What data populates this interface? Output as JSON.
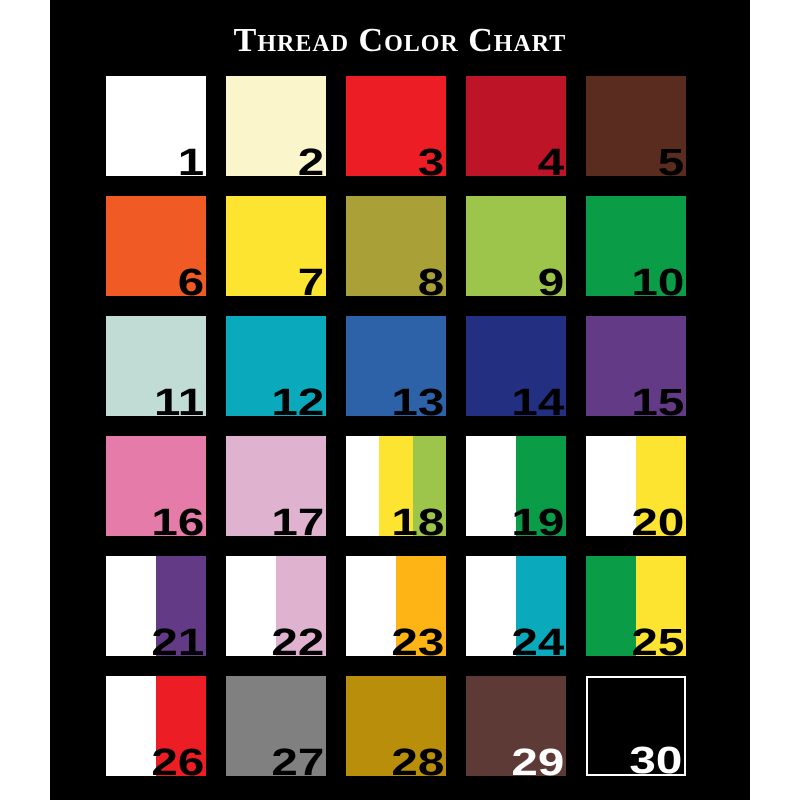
{
  "title": "Thread Color Chart",
  "swatches": [
    {
      "label": "1",
      "colors": [
        "#ffffff"
      ],
      "text_color": "#000000"
    },
    {
      "label": "2",
      "colors": [
        "#fbf5cc"
      ],
      "text_color": "#000000"
    },
    {
      "label": "3",
      "colors": [
        "#ec1d24"
      ],
      "text_color": "#000000"
    },
    {
      "label": "4",
      "colors": [
        "#be1428"
      ],
      "text_color": "#000000"
    },
    {
      "label": "5",
      "colors": [
        "#5a2c20"
      ],
      "text_color": "#000000"
    },
    {
      "label": "6",
      "colors": [
        "#f05a24"
      ],
      "text_color": "#000000"
    },
    {
      "label": "7",
      "colors": [
        "#fde431"
      ],
      "text_color": "#000000"
    },
    {
      "label": "8",
      "colors": [
        "#aaa038"
      ],
      "text_color": "#000000"
    },
    {
      "label": "9",
      "colors": [
        "#9dc54b"
      ],
      "text_color": "#000000"
    },
    {
      "label": "10",
      "colors": [
        "#0b9c48"
      ],
      "text_color": "#000000"
    },
    {
      "label": "11",
      "colors": [
        "#c1dcd4"
      ],
      "text_color": "#000000"
    },
    {
      "label": "12",
      "colors": [
        "#0aa9bb"
      ],
      "text_color": "#000000"
    },
    {
      "label": "13",
      "colors": [
        "#2e62a8"
      ],
      "text_color": "#000000"
    },
    {
      "label": "14",
      "colors": [
        "#232f80"
      ],
      "text_color": "#000000"
    },
    {
      "label": "15",
      "colors": [
        "#623a86"
      ],
      "text_color": "#000000"
    },
    {
      "label": "16",
      "colors": [
        "#e47ba9"
      ],
      "text_color": "#000000"
    },
    {
      "label": "17",
      "colors": [
        "#dfb2d0"
      ],
      "text_color": "#000000"
    },
    {
      "label": "18",
      "colors": [
        "#ffffff",
        "#fde431",
        "#9dc54b"
      ],
      "text_color": "#000000"
    },
    {
      "label": "19",
      "colors": [
        "#ffffff",
        "#0b9c48"
      ],
      "text_color": "#000000"
    },
    {
      "label": "20",
      "colors": [
        "#ffffff",
        "#fde431"
      ],
      "text_color": "#000000"
    },
    {
      "label": "21",
      "colors": [
        "#ffffff",
        "#623a86"
      ],
      "text_color": "#000000"
    },
    {
      "label": "22",
      "colors": [
        "#ffffff",
        "#dfb2d0"
      ],
      "text_color": "#000000"
    },
    {
      "label": "23",
      "colors": [
        "#ffffff",
        "#fdb414"
      ],
      "text_color": "#000000"
    },
    {
      "label": "24",
      "colors": [
        "#ffffff",
        "#0aa9bb"
      ],
      "text_color": "#000000"
    },
    {
      "label": "25",
      "colors": [
        "#0b9c48",
        "#fde431"
      ],
      "text_color": "#000000"
    },
    {
      "label": "26",
      "colors": [
        "#ffffff",
        "#ec1d24"
      ],
      "text_color": "#000000"
    },
    {
      "label": "27",
      "colors": [
        "#808080"
      ],
      "text_color": "#000000"
    },
    {
      "label": "28",
      "colors": [
        "#b98e0a"
      ],
      "text_color": "#000000"
    },
    {
      "label": "29",
      "colors": [
        "#5e3a36"
      ],
      "text_color": "#ffffff"
    },
    {
      "label": "30",
      "colors": [
        "#000000"
      ],
      "text_color": "#ffffff",
      "outline": "#ffffff"
    }
  ]
}
